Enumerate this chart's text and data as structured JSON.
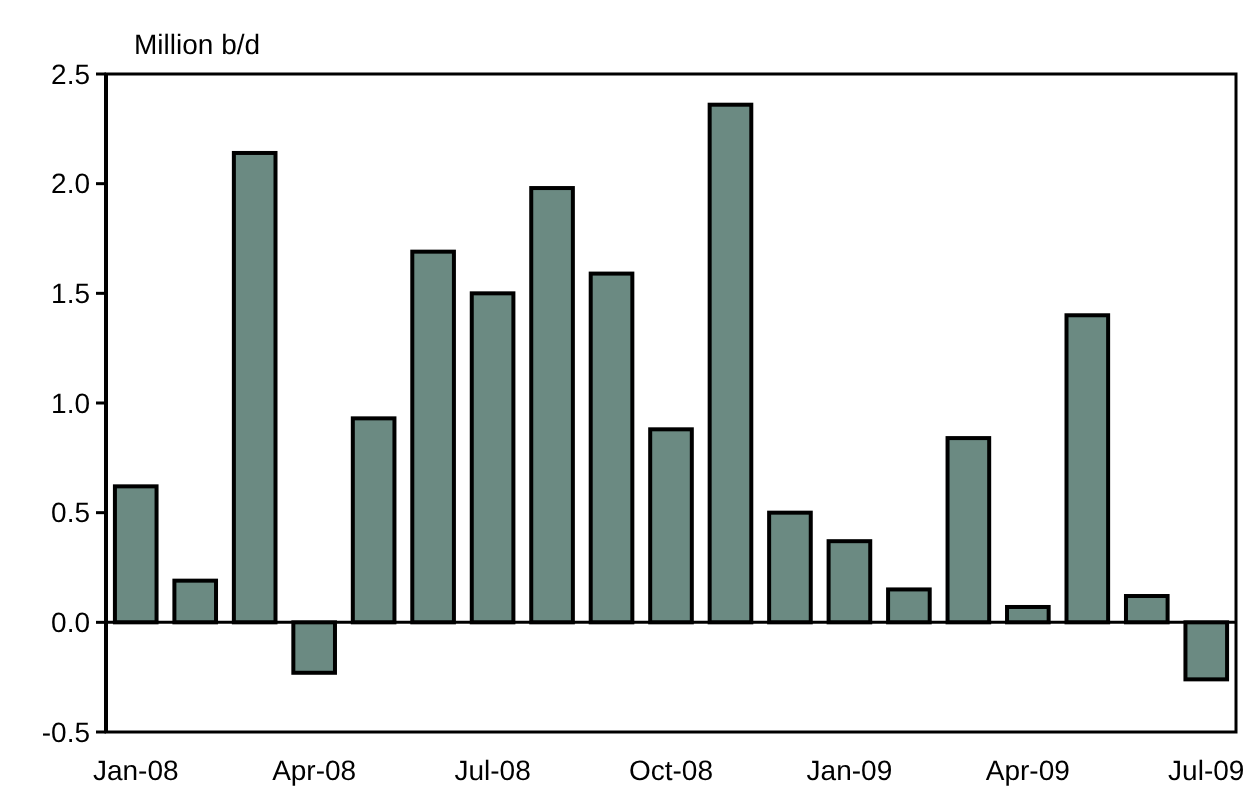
{
  "chart_data": {
    "type": "bar",
    "ylabel": "Million b/d",
    "categories": [
      "Jan-08",
      null,
      null,
      "Apr-08",
      null,
      null,
      "Jul-08",
      null,
      null,
      "Oct-08",
      null,
      null,
      "Jan-09",
      null,
      null,
      "Apr-09",
      null,
      null,
      "Jul-09"
    ],
    "values": [
      0.62,
      0.19,
      2.14,
      -0.23,
      0.93,
      1.69,
      1.5,
      1.98,
      1.59,
      0.88,
      2.36,
      0.5,
      0.37,
      0.15,
      0.84,
      0.07,
      1.4,
      0.12,
      -0.26
    ],
    "color": "#6b8a82",
    "ylim": [
      -0.5,
      2.5
    ],
    "yticks": [
      {
        "value": -0.5,
        "label": "-0.5"
      },
      {
        "value": 0,
        "label": "0.0"
      },
      {
        "value": 0.5,
        "label": "0.5"
      },
      {
        "value": 1,
        "label": "1.0"
      },
      {
        "value": 1.5,
        "label": "1.5"
      },
      {
        "value": 2,
        "label": "2.0"
      },
      {
        "value": 2.5,
        "label": "2.5"
      }
    ]
  }
}
